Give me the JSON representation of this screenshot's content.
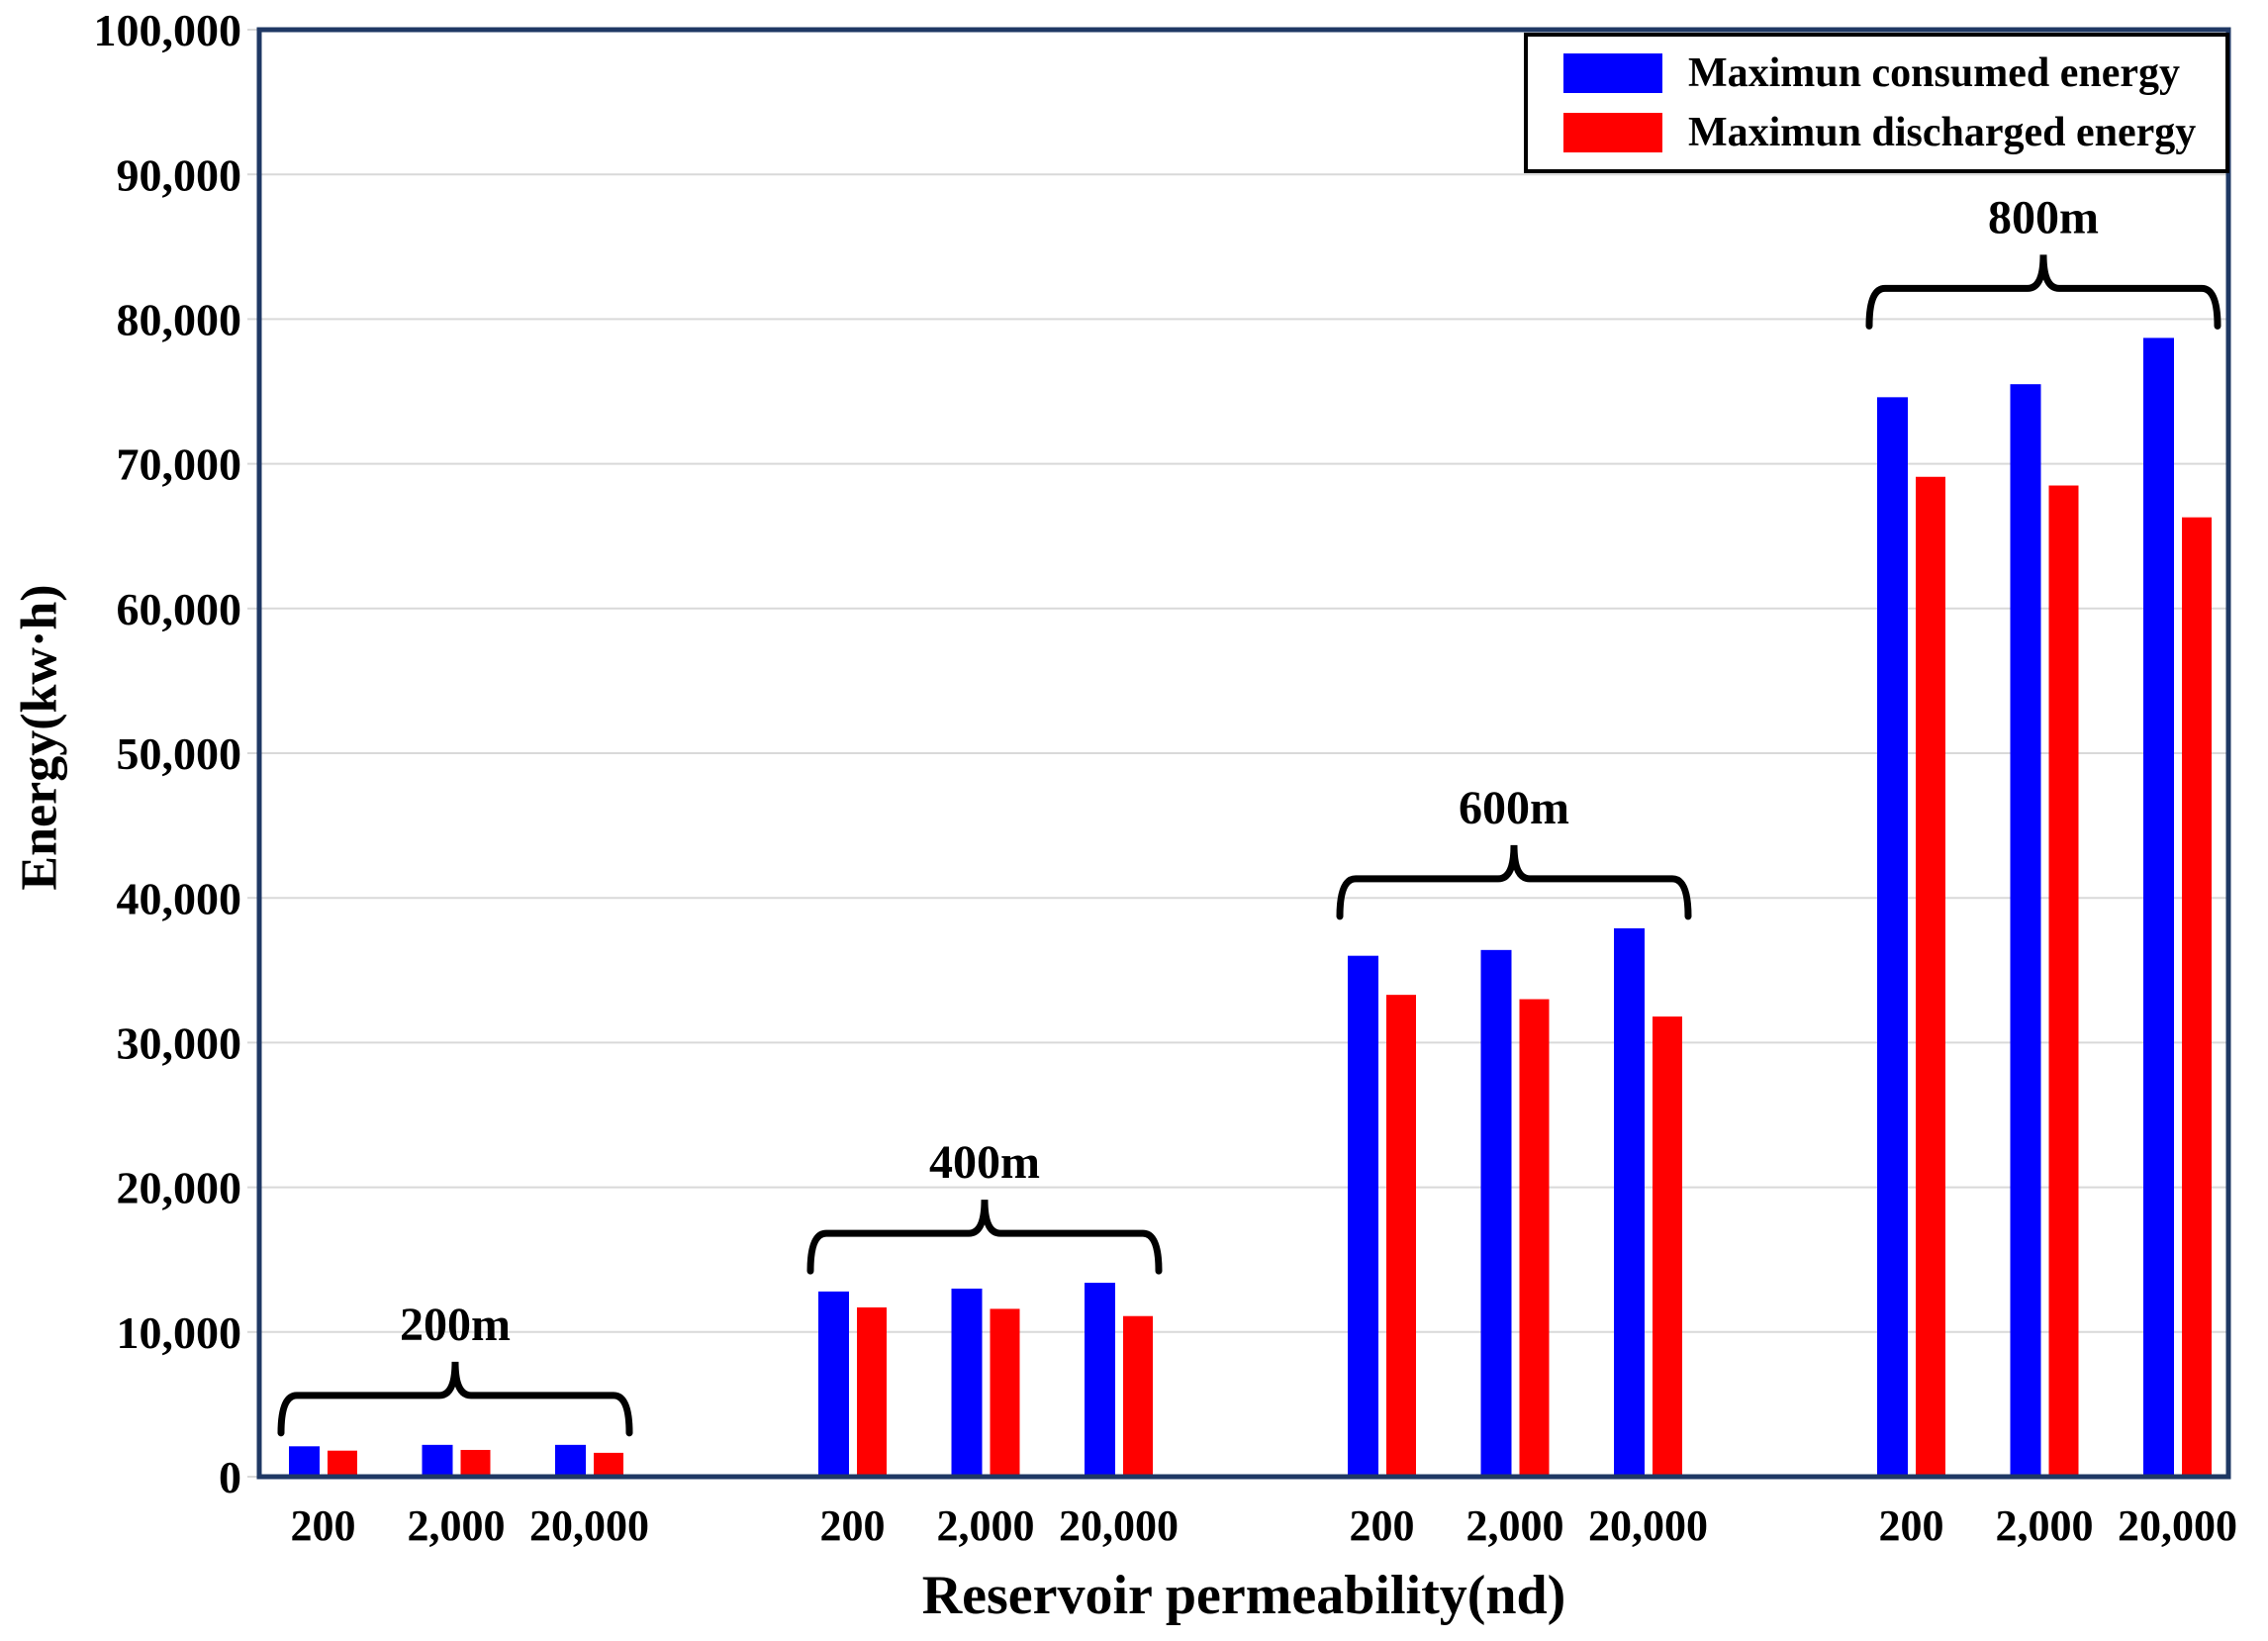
{
  "chart_data": {
    "type": "bar",
    "title": "",
    "xlabel": "Reservoir permeability(nd)",
    "ylabel": "Energy(kw·h)",
    "ylim": [
      0,
      100000
    ],
    "ytick_step": 10000,
    "grid": "horizontal",
    "legend_position": "top-right",
    "series": [
      {
        "key": "consumed",
        "name": "Maximun consumed energy",
        "color": "#0000ff"
      },
      {
        "key": "discharged",
        "name": "Maximun discharged energy",
        "color": "#ff0000"
      }
    ],
    "groups": [
      {
        "label": "200m",
        "categories": [
          "200",
          "2,000",
          "20,000"
        ],
        "values": {
          "consumed": [
            2100,
            2200,
            2200
          ],
          "discharged": [
            1800,
            1850,
            1650
          ]
        }
      },
      {
        "label": "400m",
        "categories": [
          "200",
          "2,000",
          "20,000"
        ],
        "values": {
          "consumed": [
            12800,
            13000,
            13400
          ],
          "discharged": [
            11700,
            11600,
            11100
          ]
        }
      },
      {
        "label": "600m",
        "categories": [
          "200",
          "2,000",
          "20,000"
        ],
        "values": {
          "consumed": [
            36000,
            36400,
            37900
          ],
          "discharged": [
            33300,
            33000,
            31800
          ]
        }
      },
      {
        "label": "800m",
        "categories": [
          "200",
          "2,000",
          "20,000"
        ],
        "values": {
          "consumed": [
            74600,
            75500,
            78700
          ],
          "discharged": [
            69100,
            68500,
            66300
          ]
        }
      }
    ],
    "colors": {
      "frame": "#1f3864",
      "gridline": "#d9d9d9",
      "brace": "#000000",
      "text": "#000000",
      "background": "#ffffff"
    }
  }
}
